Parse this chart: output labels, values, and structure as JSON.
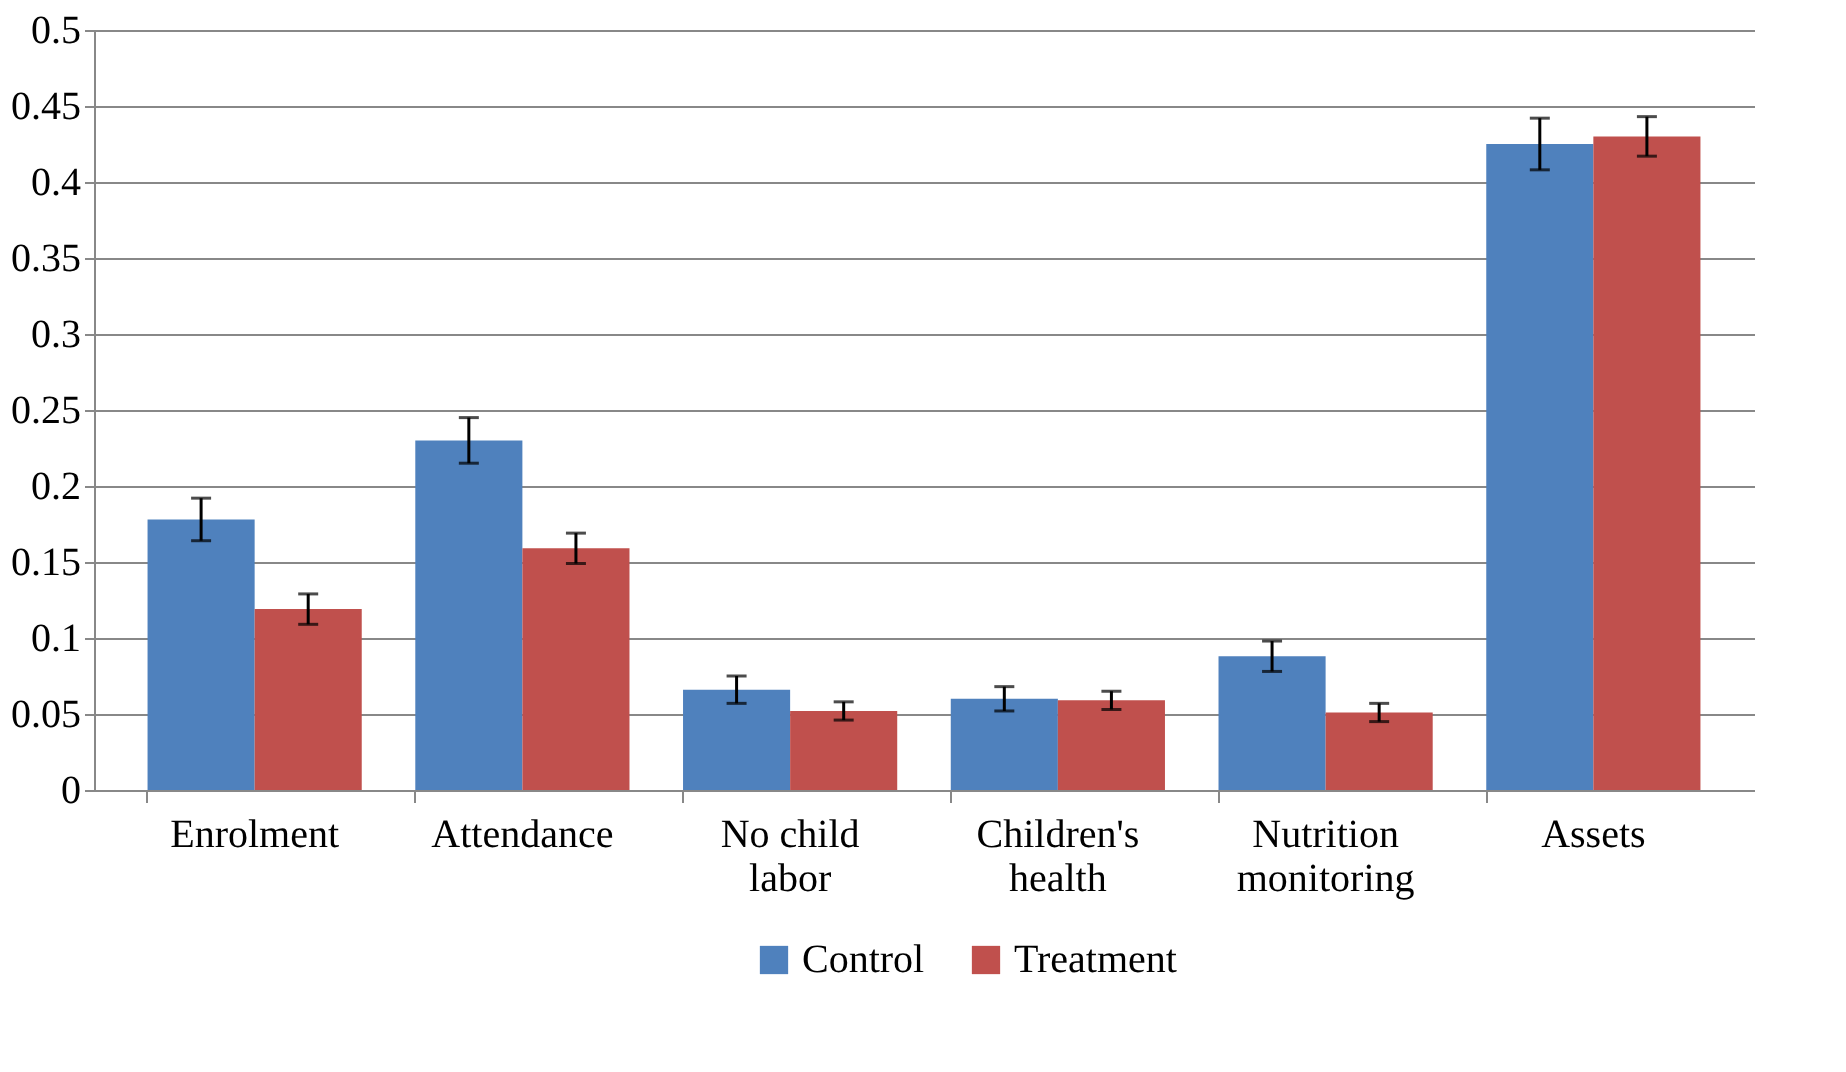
{
  "chart_data": {
    "type": "bar",
    "categories": [
      "Enrolment",
      "Attendance",
      "No child\nlabor",
      "Children's\nhealth",
      "Nutrition\nmonitoring",
      "Assets"
    ],
    "series": [
      {
        "name": "Control",
        "color": "#4f81bd",
        "values": [
          0.178,
          0.23,
          0.066,
          0.06,
          0.088,
          0.425
        ],
        "errors": [
          0.014,
          0.015,
          0.009,
          0.008,
          0.01,
          0.017
        ]
      },
      {
        "name": "Treatment",
        "color": "#c0504d",
        "values": [
          0.119,
          0.159,
          0.052,
          0.059,
          0.051,
          0.43
        ],
        "errors": [
          0.01,
          0.01,
          0.006,
          0.006,
          0.006,
          0.013
        ]
      }
    ],
    "ylim": [
      0,
      0.5
    ],
    "yticks": [
      0,
      0.05,
      0.1,
      0.15,
      0.2,
      0.25,
      0.3,
      0.35,
      0.4,
      0.45,
      0.5
    ],
    "grid": "y",
    "legend": "bottom"
  }
}
